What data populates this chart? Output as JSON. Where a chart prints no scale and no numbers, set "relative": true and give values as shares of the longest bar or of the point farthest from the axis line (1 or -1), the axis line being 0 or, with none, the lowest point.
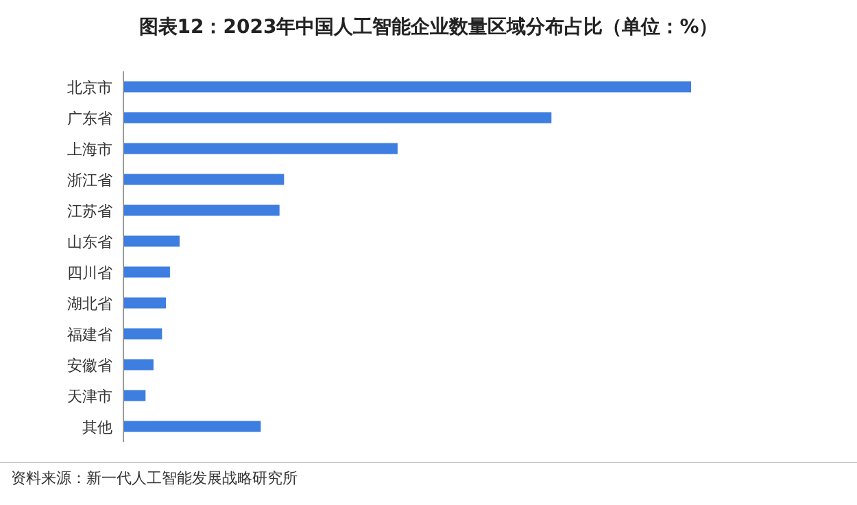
{
  "chart_data": {
    "type": "bar",
    "orientation": "horizontal",
    "relative": true,
    "title": "图表12：2023年中国人工智能企业数量区域分布占比（单位：%）",
    "categories": [
      "北京市",
      "广东省",
      "上海市",
      "浙江省",
      "江苏省",
      "山东省",
      "四川省",
      "湖北省",
      "福建省",
      "安徽省",
      "天津市",
      "其他"
    ],
    "values": [
      1,
      0.754,
      0.483,
      0.283,
      0.275,
      0.099,
      0.082,
      0.075,
      0.068,
      0.053,
      0.039,
      0.242
    ],
    "color": "#3d7ee0",
    "annotations": [
      "资料来源：新一代人工智能发展战略研究所"
    ]
  }
}
